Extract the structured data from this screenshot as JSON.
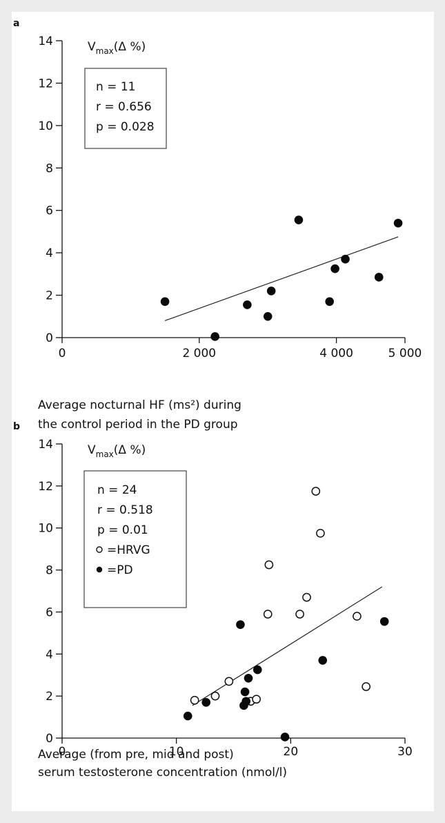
{
  "chart_data": [
    {
      "type": "scatter",
      "panel_label": "a",
      "ylabel_main": "V",
      "ylabel_sub": "max",
      "ylabel_unit": "(Δ %)",
      "xlabel_lines": [
        "Average nocturnal HF (ms²) during",
        "the control period in the PD group"
      ],
      "xlim": [
        0,
        5000
      ],
      "ylim": [
        0,
        14
      ],
      "xticks": [
        0,
        2000,
        4000,
        5000
      ],
      "xtick_labels": [
        "0",
        "2 000",
        "4 000",
        "5 000"
      ],
      "yticks": [
        0,
        2,
        4,
        6,
        8,
        10,
        12,
        14
      ],
      "ytick_labels": [
        "0",
        "2",
        "4",
        "6",
        "8",
        "10",
        "12",
        "14"
      ],
      "stats": [
        "n = 11",
        "r = 0.656",
        "p = 0.028"
      ],
      "legend": [],
      "trend_line": {
        "x": [
          1500,
          4900
        ],
        "y": [
          0.8,
          4.75
        ]
      },
      "series": [
        {
          "marker": "filled",
          "points": [
            [
              1500,
              1.7
            ],
            [
              2230,
              0.05
            ],
            [
              2700,
              1.55
            ],
            [
              3000,
              1.0
            ],
            [
              3050,
              2.2
            ],
            [
              3450,
              5.55
            ],
            [
              3900,
              1.7
            ],
            [
              3980,
              3.25
            ],
            [
              4130,
              3.7
            ],
            [
              4620,
              2.85
            ],
            [
              4900,
              5.4
            ]
          ]
        }
      ]
    },
    {
      "type": "scatter",
      "panel_label": "b",
      "ylabel_main": "V",
      "ylabel_sub": "max",
      "ylabel_unit": "(Δ %)",
      "xlabel_lines": [
        "Average (from pre, mid and post)",
        "serum testosterone concentration (nmol/l)"
      ],
      "xlim": [
        0,
        30
      ],
      "ylim": [
        0,
        14
      ],
      "xticks": [
        0,
        10,
        20,
        30
      ],
      "xtick_labels": [
        "0",
        "10",
        "20",
        "30"
      ],
      "yticks": [
        0,
        2,
        4,
        6,
        8,
        10,
        12,
        14
      ],
      "ytick_labels": [
        "0",
        "2",
        "4",
        "6",
        "8",
        "10",
        "12",
        "14"
      ],
      "stats": [
        "n = 24",
        "r = 0.518",
        "p = 0.01"
      ],
      "legend": [
        {
          "marker": "open",
          "label": "=HRVG"
        },
        {
          "marker": "filled",
          "label": "=PD"
        }
      ],
      "trend_line": {
        "x": [
          11.4,
          28.0
        ],
        "y": [
          1.55,
          7.2
        ]
      },
      "series": [
        {
          "name": "HRVG",
          "marker": "open",
          "points": [
            [
              11.6,
              1.8
            ],
            [
              13.4,
              2.0
            ],
            [
              14.6,
              2.7
            ],
            [
              16.5,
              1.75
            ],
            [
              17.0,
              1.85
            ],
            [
              18.0,
              5.9
            ],
            [
              18.1,
              8.25
            ],
            [
              20.8,
              5.9
            ],
            [
              21.4,
              6.7
            ],
            [
              22.2,
              11.75
            ],
            [
              22.6,
              9.75
            ],
            [
              25.8,
              5.8
            ],
            [
              26.6,
              2.45
            ]
          ]
        },
        {
          "name": "PD",
          "marker": "filled",
          "points": [
            [
              11.0,
              1.05
            ],
            [
              12.6,
              1.7
            ],
            [
              15.6,
              5.4
            ],
            [
              15.9,
              1.55
            ],
            [
              16.0,
              2.2
            ],
            [
              16.1,
              1.75
            ],
            [
              16.3,
              2.85
            ],
            [
              17.1,
              3.25
            ],
            [
              19.5,
              0.05
            ],
            [
              22.8,
              3.7
            ],
            [
              28.2,
              5.55
            ]
          ]
        }
      ]
    }
  ]
}
